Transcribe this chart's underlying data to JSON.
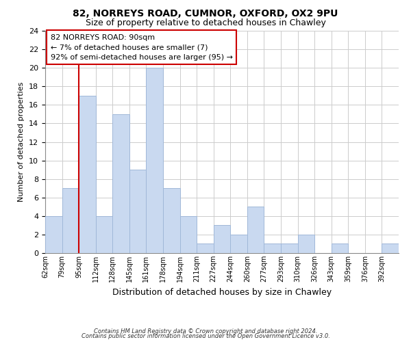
{
  "title": "82, NORREYS ROAD, CUMNOR, OXFORD, OX2 9PU",
  "subtitle": "Size of property relative to detached houses in Chawley",
  "xlabel": "Distribution of detached houses by size in Chawley",
  "ylabel": "Number of detached properties",
  "footer_line1": "Contains HM Land Registry data © Crown copyright and database right 2024.",
  "footer_line2": "Contains public sector information licensed under the Open Government Licence v3.0.",
  "bin_labels": [
    "62sqm",
    "79sqm",
    "95sqm",
    "112sqm",
    "128sqm",
    "145sqm",
    "161sqm",
    "178sqm",
    "194sqm",
    "211sqm",
    "227sqm",
    "244sqm",
    "260sqm",
    "277sqm",
    "293sqm",
    "310sqm",
    "326sqm",
    "343sqm",
    "359sqm",
    "376sqm",
    "392sqm"
  ],
  "bar_values": [
    4,
    7,
    17,
    4,
    15,
    9,
    20,
    7,
    4,
    1,
    3,
    2,
    5,
    1,
    1,
    2,
    0,
    1,
    0,
    0,
    1
  ],
  "bar_color": "#c9d9f0",
  "bar_edge_color": "#a0b8d8",
  "subject_line_color": "#cc0000",
  "subject_line_idx": 2,
  "ylim": [
    0,
    24
  ],
  "yticks": [
    0,
    2,
    4,
    6,
    8,
    10,
    12,
    14,
    16,
    18,
    20,
    22,
    24
  ],
  "annotation_title": "82 NORREYS ROAD: 90sqm",
  "annotation_line1": "← 7% of detached houses are smaller (7)",
  "annotation_line2": "92% of semi-detached houses are larger (95) →",
  "annotation_box_color": "#ffffff",
  "annotation_box_edge": "#cc0000",
  "background_color": "#ffffff",
  "grid_color": "#cccccc"
}
